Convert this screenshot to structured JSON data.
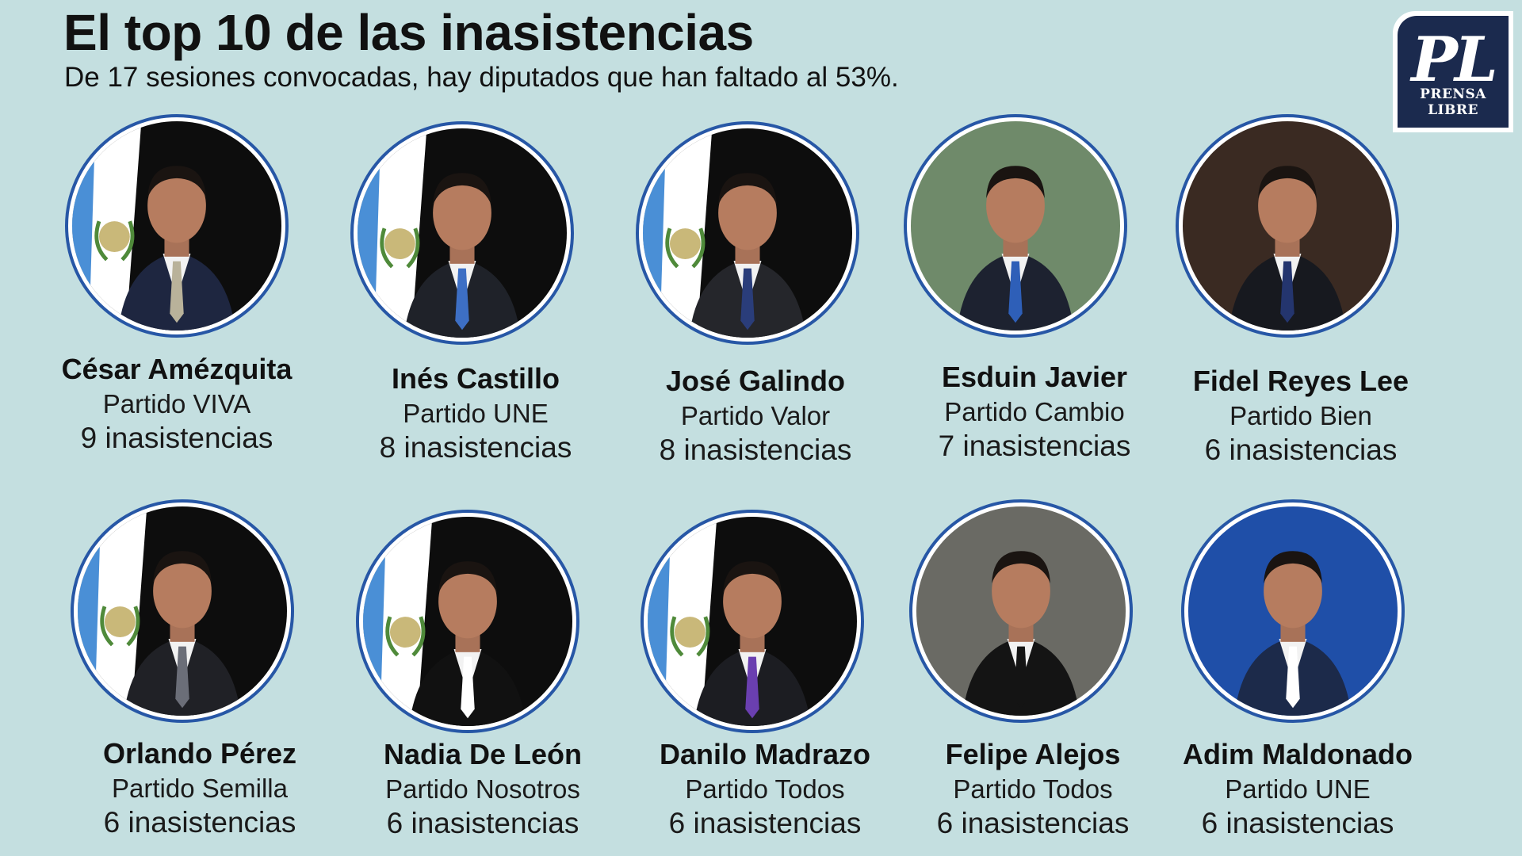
{
  "header": {
    "title": "El top 10 de las inasistencias",
    "subtitle": "De 17 sesiones convocadas, hay diputados que han faltado al 53%."
  },
  "logo": {
    "mark": "PL",
    "name": "PRENSA LIBRE"
  },
  "colors": {
    "background": "#c4dfe0",
    "ring": "#2757a6",
    "logo_bg": "#1b2a4e"
  },
  "deputies": [
    {
      "name": "César Amézquita",
      "party": "Partido VIVA",
      "absences": "9 inasistencias",
      "photo_bg": "#0d0d0d",
      "suit": "#1e2640",
      "tie": "#b9b29a",
      "flag": true
    },
    {
      "name": "Inés Castillo",
      "party": "Partido UNE",
      "absences": "8 inasistencias",
      "photo_bg": "#0d0d0d",
      "suit": "#1f2229",
      "tie": "#3d6fc4",
      "flag": true
    },
    {
      "name": "José Galindo",
      "party": "Partido Valor",
      "absences": "8 inasistencias",
      "photo_bg": "#0d0d0d",
      "suit": "#25262b",
      "tie": "#2a3d7a",
      "flag": true
    },
    {
      "name": "Esduin Javier",
      "party": "Partido Cambio",
      "absences": "7 inasistencias",
      "photo_bg": "#6f8a6a",
      "suit": "#1d2230",
      "tie": "#2e5fb8",
      "flag": false
    },
    {
      "name": "Fidel Reyes Lee",
      "party": "Partido Bien",
      "absences": "6 inasistencias",
      "photo_bg": "#3a2a22",
      "suit": "#17191f",
      "tie": "#24356e",
      "flag": false
    },
    {
      "name": "Orlando Pérez",
      "party": "Partido Semilla",
      "absences": "6 inasistencias",
      "photo_bg": "#0d0d0d",
      "suit": "#202126",
      "tie": "#6b6e78",
      "flag": true
    },
    {
      "name": "Nadia De León",
      "party": "Partido Nosotros",
      "absences": "6 inasistencias",
      "photo_bg": "#0d0d0d",
      "suit": "#111111",
      "tie": "#ffffff",
      "flag": true
    },
    {
      "name": "Danilo Madrazo",
      "party": "Partido Todos",
      "absences": "6 inasistencias",
      "photo_bg": "#0d0d0d",
      "suit": "#1c1d22",
      "tie": "#6a3fb0",
      "flag": true
    },
    {
      "name": "Felipe Alejos",
      "party": "Partido Todos",
      "absences": "6 inasistencias",
      "photo_bg": "#6a6a64",
      "suit": "#141414",
      "tie": "#141414",
      "flag": false
    },
    {
      "name": "Adim Maldonado",
      "party": "Partido UNE",
      "absences": "6 inasistencias",
      "photo_bg": "#1f4fa8",
      "suit": "#1c2a4a",
      "tie": "#ffffff",
      "flag": false
    }
  ]
}
